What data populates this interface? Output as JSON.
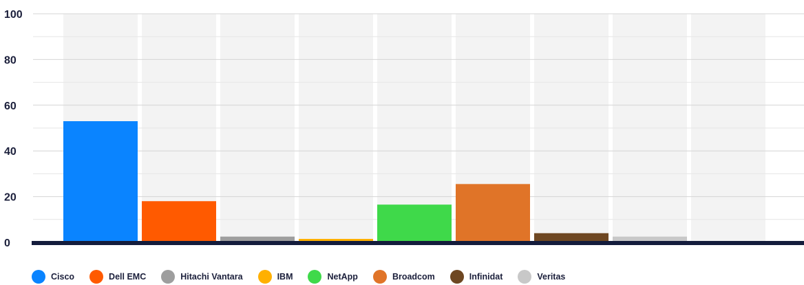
{
  "chart_data": {
    "type": "bar",
    "categories": [
      "Cisco",
      "Dell EMC",
      "Hitachi Vantara",
      "IBM",
      "NetApp",
      "Broadcom",
      "Infinidat",
      "Veritas",
      ""
    ],
    "values": [
      53,
      18,
      2.5,
      1.5,
      16.5,
      25.5,
      4,
      2.5,
      0
    ],
    "colors": [
      "#0a84ff",
      "#ff5a00",
      "#9e9e9e",
      "#ffb000",
      "#3fd94a",
      "#e07428",
      "#6e4722",
      "#c8c8c8",
      "#c8c8c8"
    ],
    "ylim": [
      0,
      100
    ],
    "yticks": [
      0,
      20,
      40,
      60,
      80,
      100
    ],
    "grid": true,
    "legend_position": "bottom-left",
    "baseline_color": "#141c3c",
    "column_background": "#f3f3f3"
  },
  "legend": {
    "items": [
      {
        "label": "Cisco",
        "color": "#0a84ff"
      },
      {
        "label": "Dell EMC",
        "color": "#ff5a00"
      },
      {
        "label": "Hitachi Vantara",
        "color": "#9e9e9e"
      },
      {
        "label": "IBM",
        "color": "#ffb000"
      },
      {
        "label": "NetApp",
        "color": "#3fd94a"
      },
      {
        "label": "Broadcom",
        "color": "#e07428"
      },
      {
        "label": "Infinidat",
        "color": "#6e4722"
      },
      {
        "label": "Veritas",
        "color": "#c8c8c8"
      }
    ]
  }
}
